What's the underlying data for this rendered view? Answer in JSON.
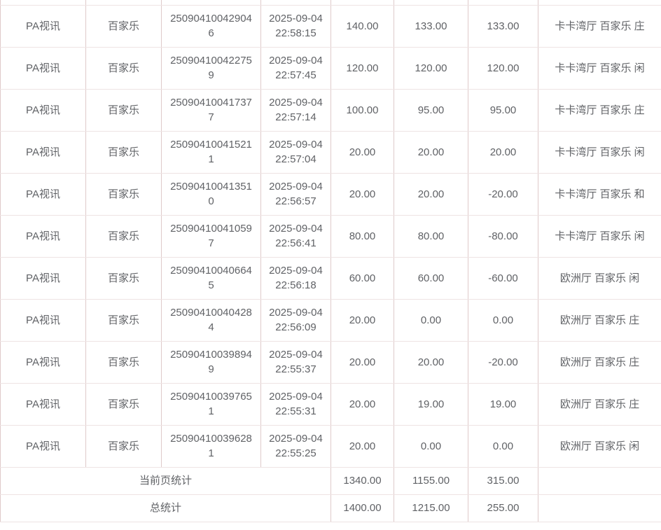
{
  "colors": {
    "border_vertical": "#dfcaca",
    "border_horizontal": "#eee3e3",
    "text": "#606266",
    "background": "#ffffff"
  },
  "table": {
    "rows": [
      {
        "platform": "PA视讯",
        "game": "百家乐",
        "order_no": "250904100429046",
        "time": "2025-09-04 22:58:15",
        "bet": "140.00",
        "valid": "133.00",
        "winloss": "133.00",
        "detail": "卡卡湾厅 百家乐 庄"
      },
      {
        "platform": "PA视讯",
        "game": "百家乐",
        "order_no": "250904100422759",
        "time": "2025-09-04 22:57:45",
        "bet": "120.00",
        "valid": "120.00",
        "winloss": "120.00",
        "detail": "卡卡湾厅 百家乐 闲"
      },
      {
        "platform": "PA视讯",
        "game": "百家乐",
        "order_no": "250904100417377",
        "time": "2025-09-04 22:57:14",
        "bet": "100.00",
        "valid": "95.00",
        "winloss": "95.00",
        "detail": "卡卡湾厅 百家乐 庄"
      },
      {
        "platform": "PA视讯",
        "game": "百家乐",
        "order_no": "250904100415211",
        "time": "2025-09-04 22:57:04",
        "bet": "20.00",
        "valid": "20.00",
        "winloss": "20.00",
        "detail": "卡卡湾厅 百家乐 闲"
      },
      {
        "platform": "PA视讯",
        "game": "百家乐",
        "order_no": "250904100413510",
        "time": "2025-09-04 22:56:57",
        "bet": "20.00",
        "valid": "20.00",
        "winloss": "-20.00",
        "detail": "卡卡湾厅 百家乐 和"
      },
      {
        "platform": "PA视讯",
        "game": "百家乐",
        "order_no": "250904100410597",
        "time": "2025-09-04 22:56:41",
        "bet": "80.00",
        "valid": "80.00",
        "winloss": "-80.00",
        "detail": "卡卡湾厅 百家乐 闲"
      },
      {
        "platform": "PA视讯",
        "game": "百家乐",
        "order_no": "250904100406645",
        "time": "2025-09-04 22:56:18",
        "bet": "60.00",
        "valid": "60.00",
        "winloss": "-60.00",
        "detail": "欧洲厅 百家乐 闲"
      },
      {
        "platform": "PA视讯",
        "game": "百家乐",
        "order_no": "250904100404284",
        "time": "2025-09-04 22:56:09",
        "bet": "20.00",
        "valid": "0.00",
        "winloss": "0.00",
        "detail": "欧洲厅 百家乐 庄"
      },
      {
        "platform": "PA视讯",
        "game": "百家乐",
        "order_no": "250904100398949",
        "time": "2025-09-04 22:55:37",
        "bet": "20.00",
        "valid": "20.00",
        "winloss": "-20.00",
        "detail": "欧洲厅 百家乐 庄"
      },
      {
        "platform": "PA视讯",
        "game": "百家乐",
        "order_no": "250904100397651",
        "time": "2025-09-04 22:55:31",
        "bet": "20.00",
        "valid": "19.00",
        "winloss": "19.00",
        "detail": "欧洲厅 百家乐 庄"
      },
      {
        "platform": "PA视讯",
        "game": "百家乐",
        "order_no": "250904100396281",
        "time": "2025-09-04 22:55:25",
        "bet": "20.00",
        "valid": "0.00",
        "winloss": "0.00",
        "detail": "欧洲厅 百家乐 闲"
      }
    ],
    "page_summary": {
      "label": "当前页统计",
      "bet": "1340.00",
      "valid": "1155.00",
      "winloss": "315.00"
    },
    "total_summary": {
      "label": "总统计",
      "bet": "1400.00",
      "valid": "1215.00",
      "winloss": "255.00"
    }
  }
}
